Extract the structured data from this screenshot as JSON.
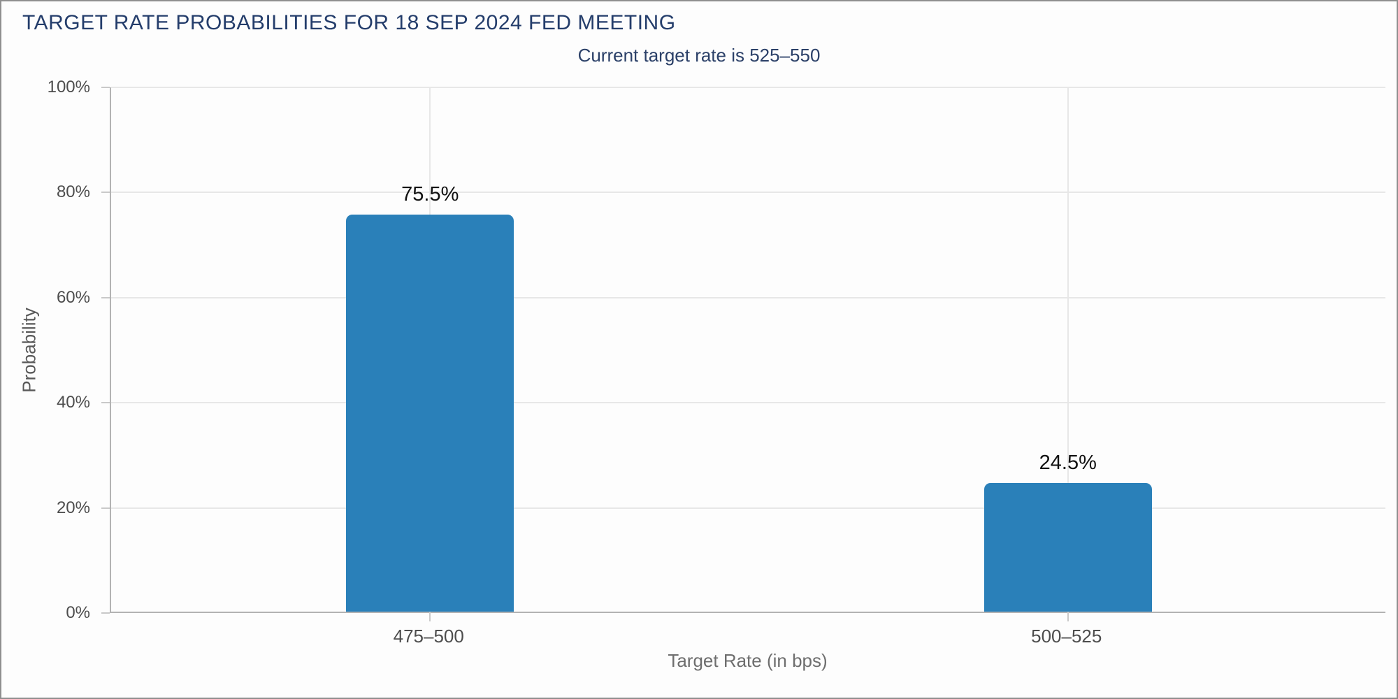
{
  "chart_data": {
    "type": "bar",
    "title": "TARGET RATE PROBABILITIES FOR 18 SEP 2024 FED MEETING",
    "subtitle": "Current target rate is 525–550",
    "categories": [
      "475–500",
      "500–525"
    ],
    "values": [
      75.5,
      24.5
    ],
    "value_labels": [
      "75.5%",
      "24.5%"
    ],
    "xlabel": "Target Rate (in bps)",
    "ylabel": "Probability",
    "ylim": [
      0,
      100
    ],
    "ytick_step": 20,
    "ytick_labels": [
      "0%",
      "20%",
      "40%",
      "60%",
      "80%",
      "100%"
    ],
    "grid": true,
    "legend": false,
    "layout": {
      "legend_position": "none",
      "vertical_gridlines_at_category_centers": true
    },
    "colors": {
      "bar": "#2a80b9",
      "title_text": "#243d6b",
      "subtitle_text": "#2b4068",
      "axis_title_text": "#595959",
      "tick_label_text": "#4d4d4d",
      "value_label_text": "#111111",
      "gridline": "#e7e7e7",
      "axis_line": "#b3b3b3",
      "tick_mark": "#c9c9c9",
      "frame_border": "#8f8f8f",
      "background": "#fdfdfd"
    }
  }
}
